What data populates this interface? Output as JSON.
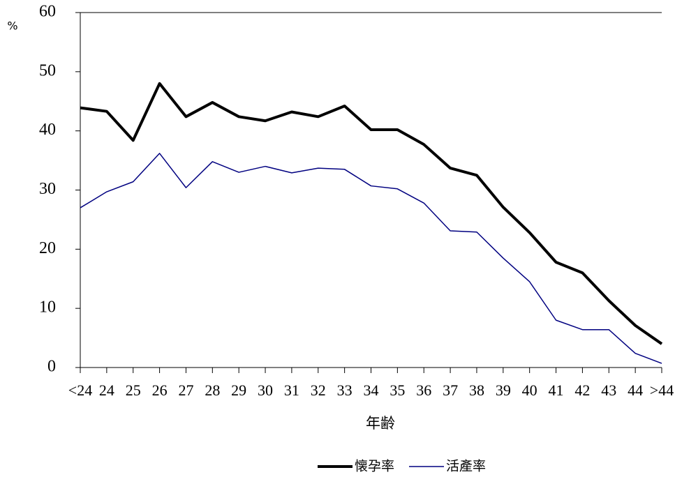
{
  "chart_data": {
    "type": "line",
    "y_unit": "%",
    "x_label": "年齢",
    "categories": [
      "<24",
      "24",
      "25",
      "26",
      "27",
      "28",
      "29",
      "30",
      "31",
      "32",
      "33",
      "34",
      "35",
      "36",
      "37",
      "38",
      "39",
      "40",
      "41",
      "42",
      "43",
      "44",
      ">44"
    ],
    "series": [
      {
        "name": "懐孕率",
        "color": "#000000",
        "width": 4,
        "values": [
          43.9,
          43.3,
          38.4,
          48.0,
          42.4,
          44.8,
          42.4,
          41.7,
          43.2,
          42.4,
          44.2,
          40.2,
          40.2,
          37.7,
          33.7,
          32.5,
          27.1,
          22.8,
          17.8,
          16.0,
          11.3,
          7.1,
          4.0
        ]
      },
      {
        "name": "活產率",
        "color": "#000080",
        "width": 1.5,
        "values": [
          27.0,
          29.7,
          31.4,
          36.2,
          30.4,
          34.8,
          33.0,
          34.0,
          32.9,
          33.7,
          33.5,
          30.7,
          30.2,
          27.8,
          23.1,
          22.9,
          18.5,
          14.5,
          8.0,
          6.4,
          6.4,
          2.4,
          0.7
        ]
      }
    ],
    "ylim": [
      0,
      60
    ],
    "yticks": [
      0,
      10,
      20,
      30,
      40,
      50,
      60
    ]
  }
}
